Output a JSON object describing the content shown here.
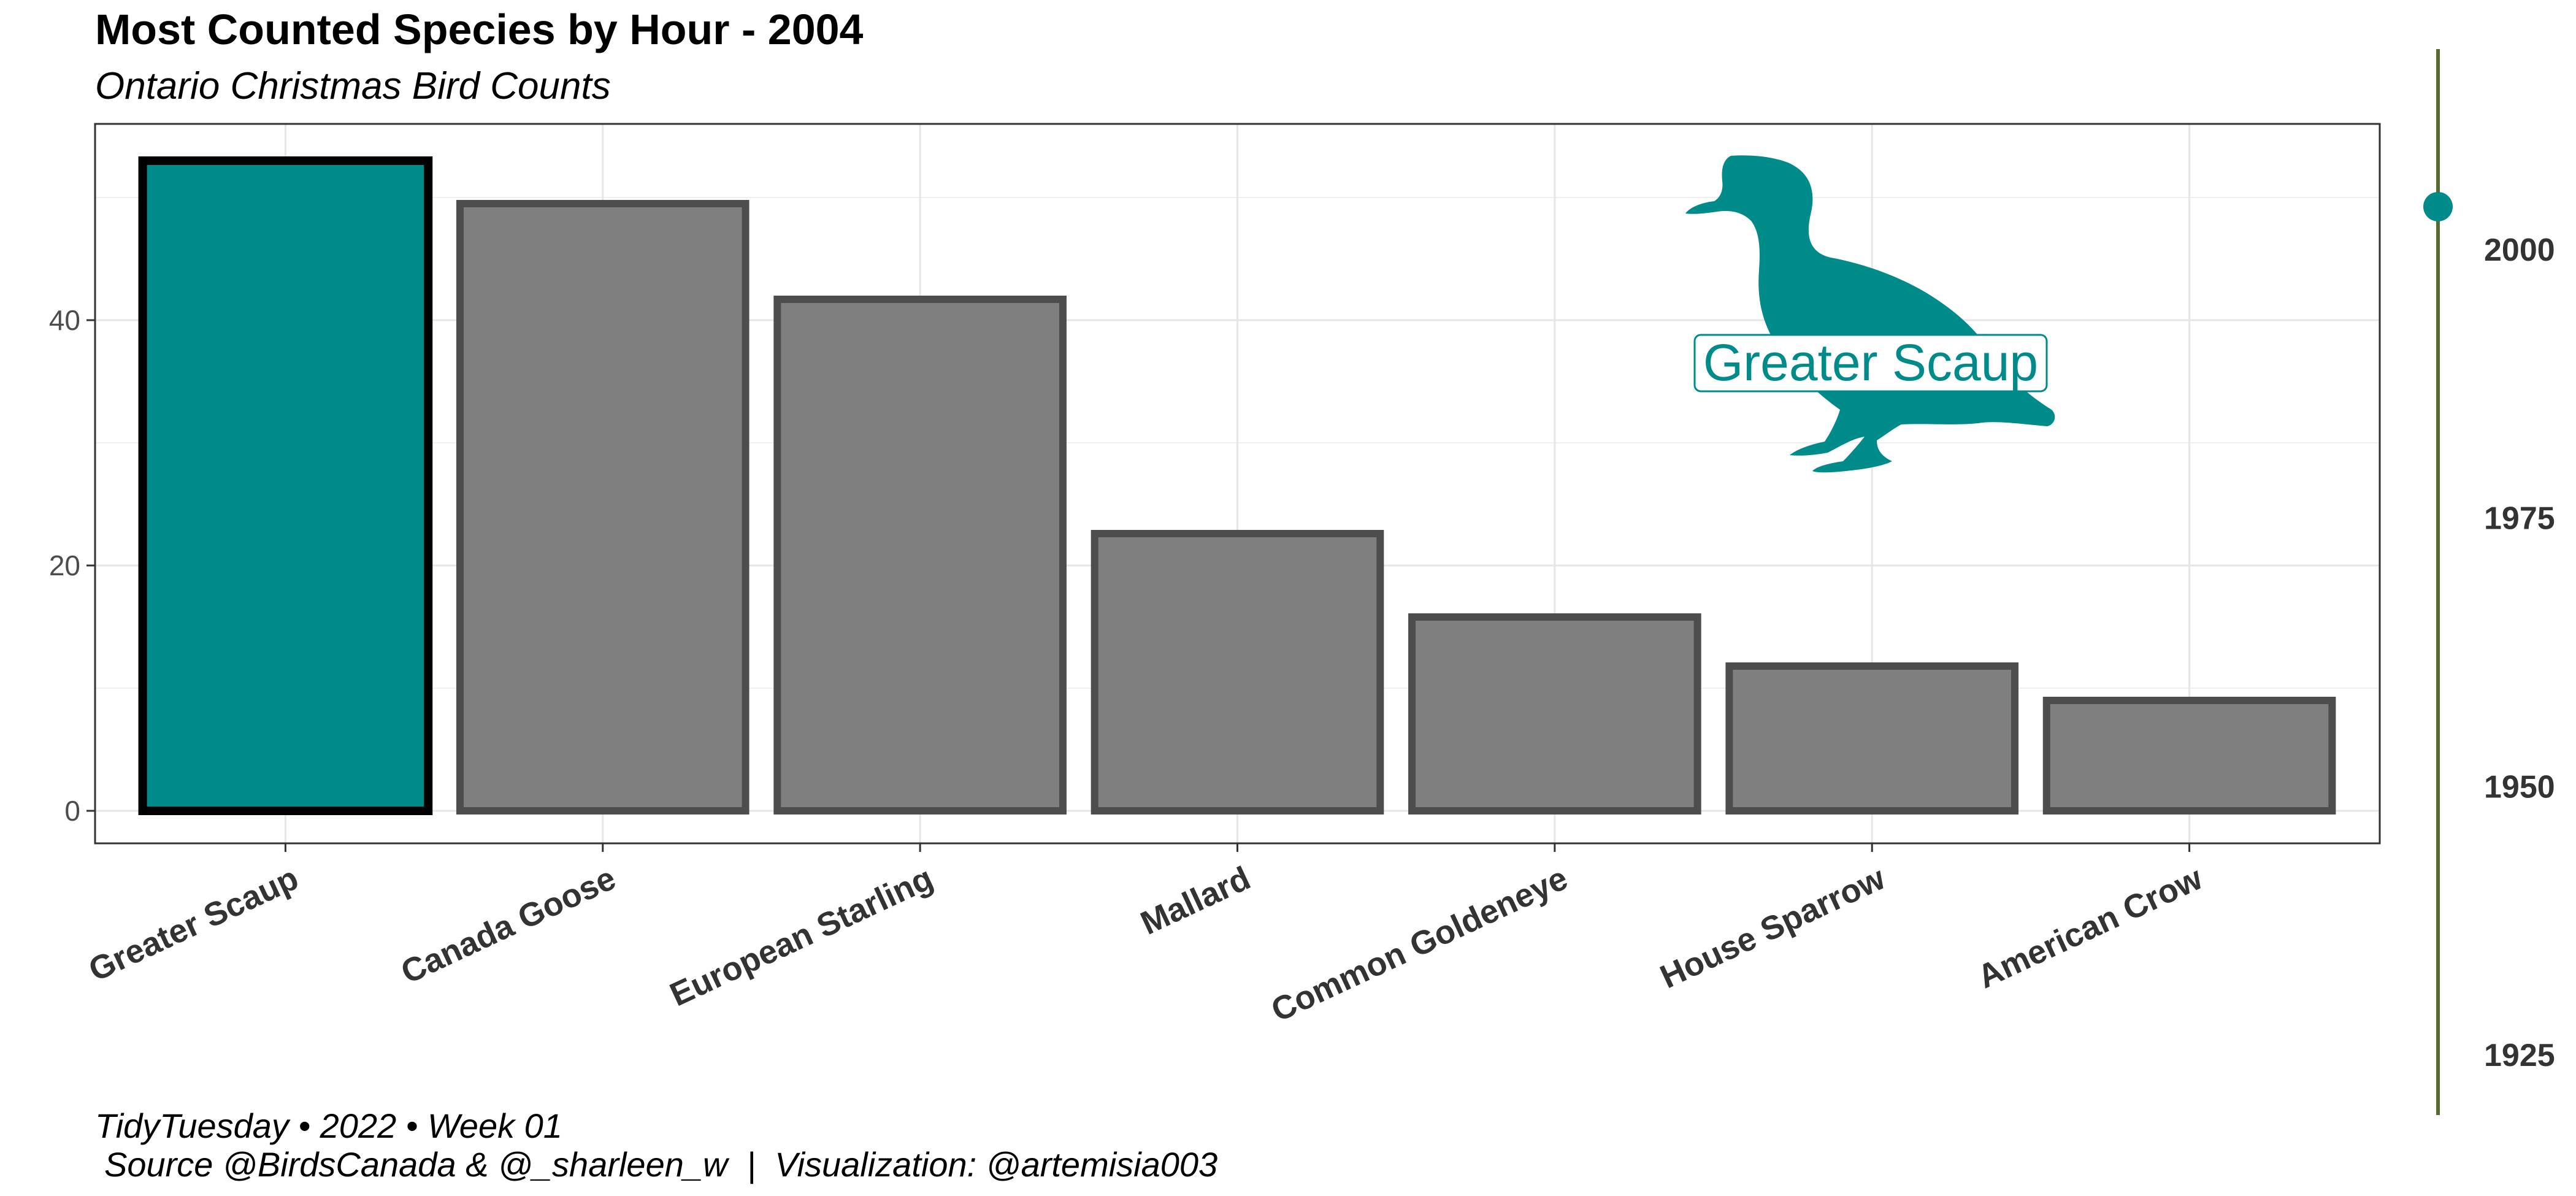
{
  "title": "Most Counted Species by Hour - 2004",
  "subtitle": "Ontario Christmas Bird Counts",
  "caption_line1": "TidyTuesday • 2022 • Week 01",
  "caption_line2": "Source @BirdsCanada & @_sharleen_w  |  Visualization: @artemisia003",
  "highlight_label": "Greater Scaup",
  "colors": {
    "highlight": "#008B8B",
    "bar": "#7F7F7F",
    "bar_border": "#4D4D4D",
    "highlight_border": "#000000",
    "timeline_line": "#556B2F"
  },
  "icons": {
    "silhouette": "duck-silhouette-icon"
  },
  "chart_data": {
    "type": "bar",
    "categories": [
      "Greater Scaup",
      "Canada Goose",
      "European Starling",
      "Mallard",
      "Common Goldeneye",
      "House Sparrow",
      "American Crow"
    ],
    "values": [
      53,
      49.5,
      41.7,
      22.6,
      15.8,
      11.8,
      9
    ],
    "highlighted": "Greater Scaup",
    "ylim": [
      0,
      55
    ],
    "yticks": [
      0,
      20,
      40
    ],
    "grid": true,
    "timeline": {
      "ticks": [
        1925,
        1950,
        1975,
        2000
      ],
      "range": [
        1920,
        2020
      ],
      "current": 2004
    }
  }
}
